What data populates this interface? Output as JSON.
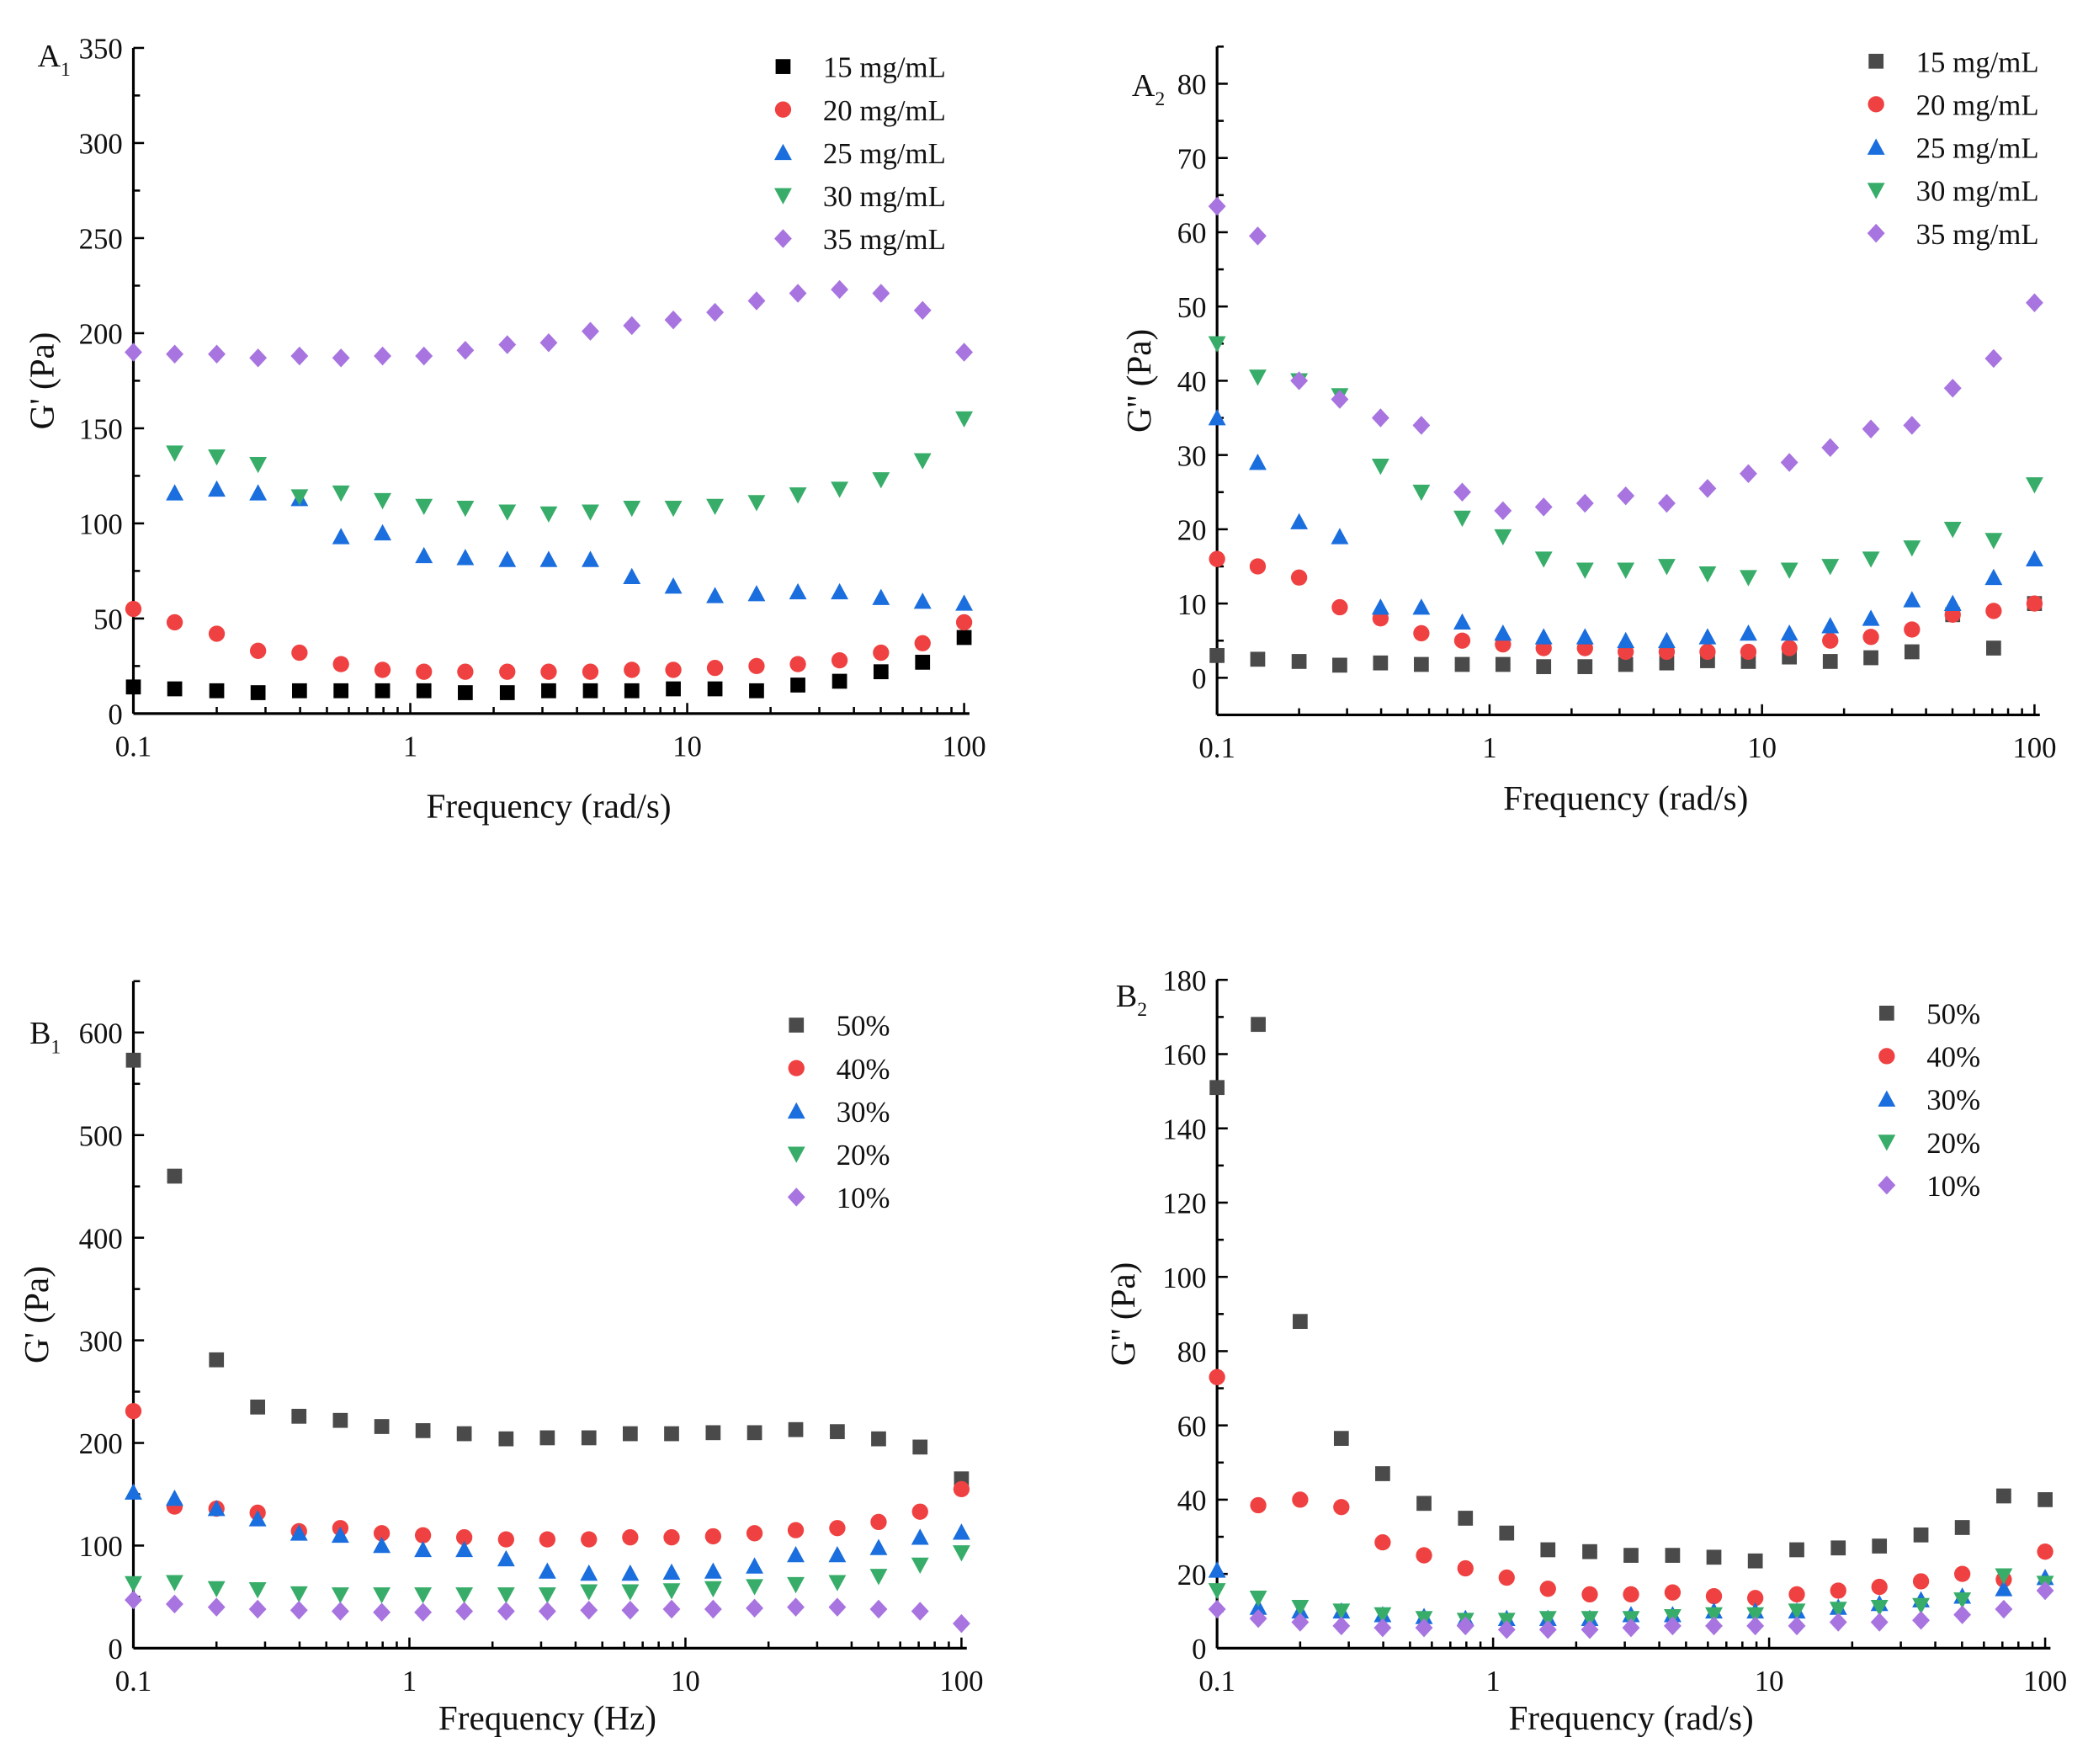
{
  "chart_data": [
    {
      "id": "A1",
      "type": "scatter",
      "panel_label": "A",
      "panel_sub": "1",
      "xlabel": "Frequency (rad/s)",
      "ylabel": "G' (Pa)",
      "xscale": "log",
      "xlim": [
        0.1,
        100
      ],
      "ylim": [
        0,
        350
      ],
      "xticks": [
        0.1,
        1,
        10,
        100
      ],
      "xtick_labels": [
        "0.1",
        "1",
        "10",
        "100"
      ],
      "yticks": [
        0,
        50,
        100,
        150,
        200,
        250,
        300,
        350
      ],
      "ytick_minor_step": 25,
      "legend_position": "top-right",
      "x": [
        0.1,
        0.141,
        0.2,
        0.282,
        0.398,
        0.562,
        0.794,
        1.12,
        1.58,
        2.24,
        3.16,
        4.47,
        6.31,
        8.91,
        12.6,
        17.8,
        25.1,
        35.5,
        50.1,
        70.8,
        100
      ],
      "series": [
        {
          "name": "15 mg/mL",
          "marker": "square",
          "color": "#000000",
          "values": [
            14,
            13,
            12,
            11,
            12,
            12,
            12,
            12,
            11,
            11,
            12,
            12,
            12,
            13,
            13,
            12,
            15,
            17,
            22,
            27,
            40
          ]
        },
        {
          "name": "20 mg/mL",
          "marker": "circle",
          "color": "#ef4141",
          "values": [
            55,
            48,
            42,
            33,
            32,
            26,
            23,
            22,
            22,
            22,
            22,
            22,
            23,
            23,
            24,
            25,
            26,
            28,
            32,
            37,
            48
          ]
        },
        {
          "name": "25 mg/mL",
          "marker": "triangle-up",
          "color": "#1a6ede",
          "values": [
            null,
            116,
            118,
            116,
            113,
            93,
            95,
            83,
            82,
            81,
            81,
            81,
            72,
            67,
            62,
            63,
            64,
            64,
            61,
            59,
            58
          ]
        },
        {
          "name": "30 mg/mL",
          "marker": "triangle-down",
          "color": "#38ad6a",
          "values": [
            null,
            137,
            135,
            131,
            114,
            116,
            112,
            109,
            108,
            106,
            105,
            106,
            108,
            108,
            109,
            111,
            115,
            118,
            123,
            133,
            155
          ]
        },
        {
          "name": "35 mg/mL",
          "marker": "diamond",
          "color": "#a874e0",
          "values": [
            190,
            189,
            189,
            187,
            188,
            187,
            188,
            188,
            191,
            194,
            195,
            201,
            204,
            207,
            211,
            217,
            221,
            223,
            221,
            212,
            190
          ]
        }
      ]
    },
    {
      "id": "A2",
      "type": "scatter",
      "panel_label": "A",
      "panel_sub": "2",
      "xlabel": "Frequency (rad/s)",
      "ylabel": "G'' (Pa)",
      "xscale": "log",
      "xlim": [
        0.1,
        100
      ],
      "ylim": [
        -5,
        85
      ],
      "xticks": [
        0.1,
        1,
        10,
        100
      ],
      "xtick_labels": [
        "0.1",
        "1",
        "10",
        "100"
      ],
      "yticks": [
        0,
        10,
        20,
        30,
        40,
        50,
        60,
        70,
        80
      ],
      "ytick_minor_step": 5,
      "legend_position": "top-right",
      "x": [
        0.1,
        0.141,
        0.2,
        0.282,
        0.398,
        0.562,
        0.794,
        1.12,
        1.58,
        2.24,
        3.16,
        4.47,
        6.31,
        8.91,
        12.6,
        17.8,
        25.1,
        35.5,
        50.1,
        70.8,
        100
      ],
      "series": [
        {
          "name": "15 mg/mL",
          "marker": "square",
          "color": "#4a4a4a",
          "values": [
            3,
            2.5,
            2.2,
            1.7,
            2,
            1.8,
            1.8,
            1.8,
            1.5,
            1.5,
            1.8,
            2,
            2.3,
            2.2,
            2.8,
            2.2,
            2.7,
            3.5,
            8.5,
            4,
            10
          ]
        },
        {
          "name": "20 mg/mL",
          "marker": "circle",
          "color": "#ef4141",
          "values": [
            16,
            15,
            13.5,
            9.5,
            8,
            6,
            5,
            4.5,
            4,
            4,
            3.5,
            3.5,
            3.5,
            3.5,
            4,
            5,
            5.5,
            6.5,
            8.5,
            9,
            10
          ]
        },
        {
          "name": "25 mg/mL",
          "marker": "triangle-up",
          "color": "#1a6ede",
          "values": [
            35,
            29,
            21,
            19,
            9.5,
            9.5,
            7.5,
            6,
            5.5,
            5.5,
            5,
            5,
            5.5,
            6,
            6,
            7,
            8,
            10.5,
            10,
            13.5,
            16
          ]
        },
        {
          "name": "30 mg/mL",
          "marker": "triangle-down",
          "color": "#38ad6a",
          "values": [
            45,
            40.5,
            40,
            38,
            28.5,
            25,
            21.5,
            19,
            16,
            14.5,
            14.5,
            15,
            14,
            13.5,
            14.5,
            15,
            16,
            17.5,
            20,
            18.5,
            26
          ]
        },
        {
          "name": "35 mg/mL",
          "marker": "diamond",
          "color": "#a874e0",
          "values": [
            63.5,
            59.5,
            40,
            37.5,
            35,
            34,
            25,
            22.5,
            23,
            23.5,
            24.5,
            23.5,
            25.5,
            27.5,
            29,
            31,
            33.5,
            34,
            39,
            43,
            50.5
          ]
        }
      ]
    },
    {
      "id": "B1",
      "type": "scatter",
      "panel_label": "B",
      "panel_sub": "1",
      "xlabel": "Frequency (Hz)",
      "ylabel": "G' (Pa)",
      "xscale": "log",
      "xlim": [
        0.1,
        100
      ],
      "ylim": [
        0,
        650
      ],
      "xticks": [
        0.1,
        1,
        10,
        100
      ],
      "xtick_labels": [
        "0.1",
        "1",
        "10",
        "100"
      ],
      "yticks": [
        0,
        100,
        200,
        300,
        400,
        500,
        600
      ],
      "ytick_minor_step": 50,
      "legend_position": "top-right",
      "x": [
        0.1,
        0.141,
        0.2,
        0.282,
        0.398,
        0.562,
        0.794,
        1.12,
        1.58,
        2.24,
        3.16,
        4.47,
        6.31,
        8.91,
        12.6,
        17.8,
        25.1,
        35.5,
        50.1,
        70.8,
        100
      ],
      "series": [
        {
          "name": "50%",
          "marker": "square",
          "color": "#4a4a4a",
          "values": [
            573,
            460,
            281,
            235,
            226,
            222,
            216,
            212,
            209,
            204,
            205,
            205,
            209,
            209,
            210,
            210,
            213,
            211,
            204,
            196,
            165
          ]
        },
        {
          "name": "40%",
          "marker": "circle",
          "color": "#ef4141",
          "values": [
            231,
            138,
            136,
            132,
            114,
            117,
            112,
            110,
            108,
            106,
            106,
            106,
            108,
            108,
            109,
            112,
            115,
            117,
            123,
            133,
            155
          ]
        },
        {
          "name": "30%",
          "marker": "triangle-up",
          "color": "#1a6ede",
          "values": [
            152,
            146,
            136,
            126,
            112,
            110,
            100,
            96,
            96,
            87,
            75,
            73,
            73,
            74,
            75,
            80,
            91,
            91,
            98,
            108,
            113
          ]
        },
        {
          "name": "20%",
          "marker": "triangle-down",
          "color": "#38ad6a",
          "values": [
            63,
            64,
            58,
            57,
            53,
            52,
            52,
            52,
            52,
            52,
            52,
            55,
            55,
            56,
            58,
            60,
            62,
            64,
            70,
            81,
            93
          ]
        },
        {
          "name": "10%",
          "marker": "diamond",
          "color": "#a874e0",
          "values": [
            47,
            43,
            40,
            38,
            37,
            36,
            35,
            35,
            36,
            36,
            36,
            37,
            37,
            38,
            38,
            39,
            40,
            40,
            38,
            36,
            24
          ]
        }
      ]
    },
    {
      "id": "B2",
      "type": "scatter",
      "panel_label": "B",
      "panel_sub": "2",
      "xlabel": "Frequency (rad/s)",
      "ylabel": "G'' (Pa)",
      "xscale": "log",
      "xlim": [
        0.1,
        100
      ],
      "ylim": [
        0,
        180
      ],
      "xticks": [
        0.1,
        1,
        10,
        100
      ],
      "xtick_labels": [
        "0.1",
        "1",
        "10",
        "100"
      ],
      "yticks": [
        0,
        20,
        40,
        60,
        80,
        100,
        120,
        140,
        160,
        180
      ],
      "ytick_minor_step": 10,
      "legend_position": "top-right",
      "x": [
        0.1,
        0.141,
        0.2,
        0.282,
        0.398,
        0.562,
        0.794,
        1.12,
        1.58,
        2.24,
        3.16,
        4.47,
        6.31,
        8.91,
        12.6,
        17.8,
        25.1,
        35.5,
        50.1,
        70.8,
        100
      ],
      "series": [
        {
          "name": "50%",
          "marker": "square",
          "color": "#4a4a4a",
          "values": [
            151,
            168,
            88,
            56.5,
            47,
            39,
            35,
            31,
            26.5,
            26,
            25,
            25,
            24.5,
            23.5,
            26.5,
            27,
            27.5,
            30.5,
            32.5,
            41,
            40
          ]
        },
        {
          "name": "40%",
          "marker": "circle",
          "color": "#ef4141",
          "values": [
            73,
            38.5,
            40,
            38,
            28.5,
            25,
            21.5,
            19,
            16,
            14.5,
            14.5,
            15,
            14,
            13.5,
            14.5,
            15.5,
            16.5,
            18,
            20,
            18.5,
            26
          ]
        },
        {
          "name": "30%",
          "marker": "triangle-up",
          "color": "#1a6ede",
          "values": [
            21,
            11,
            10,
            10,
            9,
            8.5,
            8,
            8,
            8,
            8,
            9,
            9,
            10,
            10,
            10,
            11,
            12,
            13,
            14,
            16,
            19
          ]
        },
        {
          "name": "20%",
          "marker": "triangle-down",
          "color": "#38ad6a",
          "values": [
            15.5,
            13.5,
            11,
            10,
            9,
            8,
            7.5,
            7.5,
            8,
            8,
            8,
            8.5,
            9,
            9,
            10,
            10.5,
            11,
            11.5,
            13,
            19.5,
            17.5
          ]
        },
        {
          "name": "10%",
          "marker": "diamond",
          "color": "#a874e0",
          "values": [
            10.5,
            8,
            7,
            6,
            5.5,
            5.5,
            6,
            5,
            5,
            5,
            5.5,
            6,
            6,
            6,
            6,
            7,
            7,
            7.5,
            9,
            10.5,
            15.5
          ]
        }
      ]
    }
  ]
}
